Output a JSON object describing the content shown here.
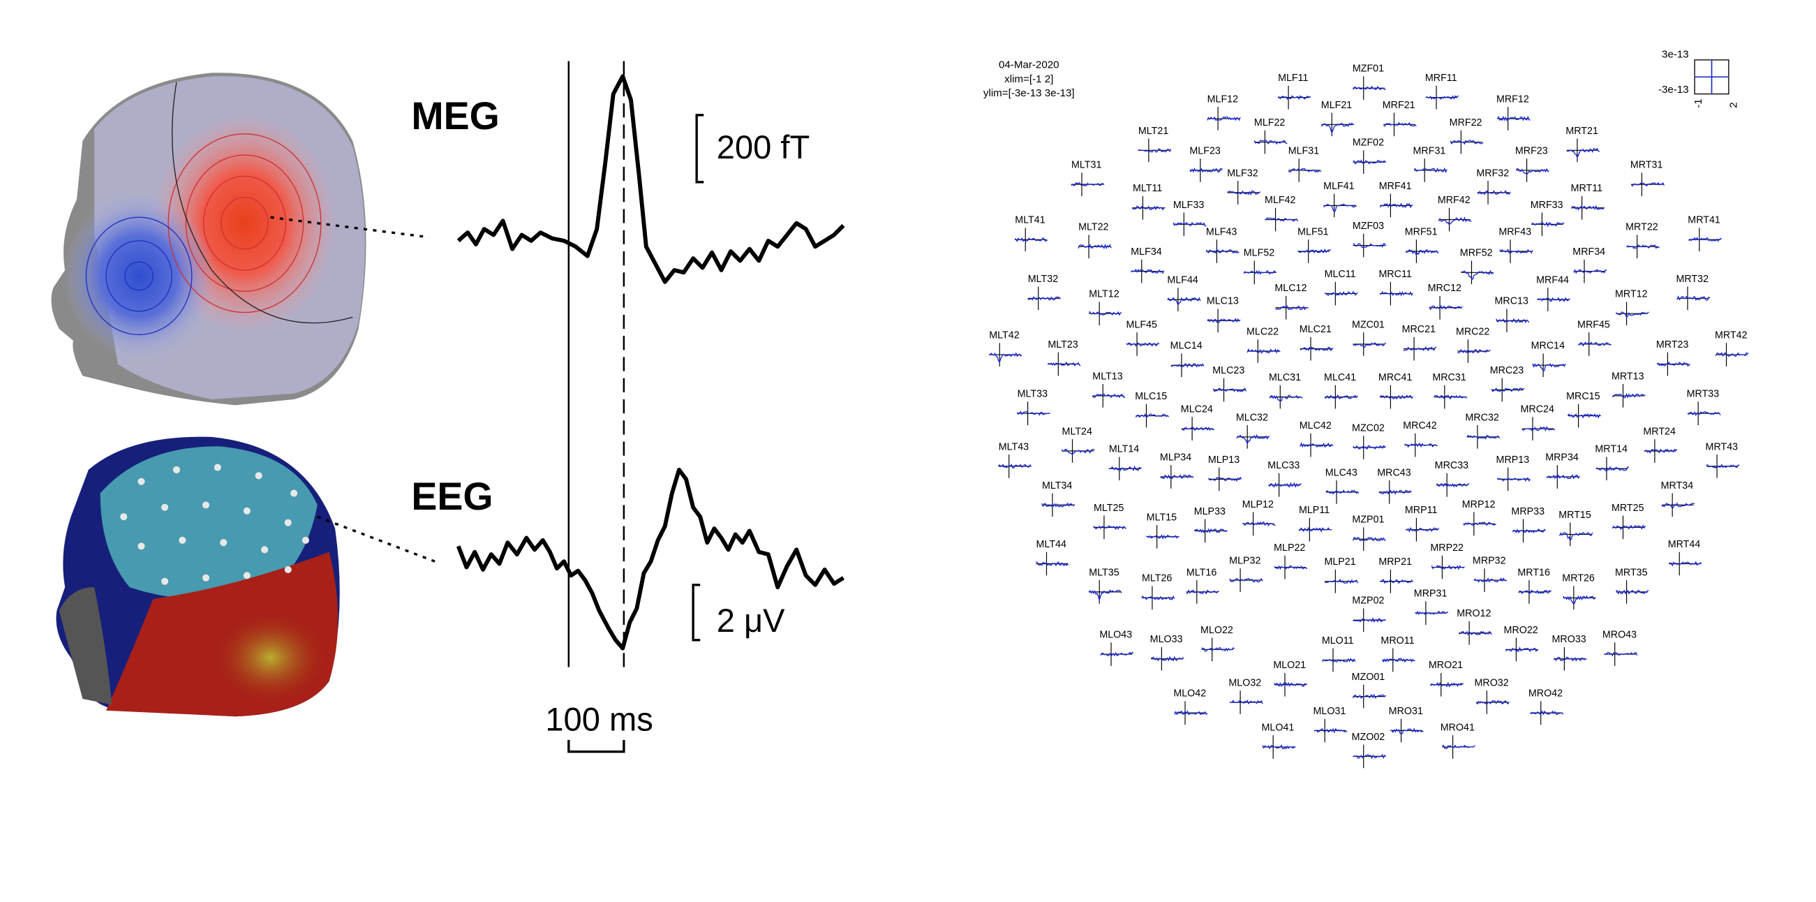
{
  "left_panel": {
    "meg_label": "MEG",
    "eeg_label": "EEG",
    "meg_scale": "200 fT",
    "eeg_scale": "2 μV",
    "time_scale": "100 ms"
  },
  "sensor_layout": {
    "date": "04-Mar-2020",
    "xlim": "xlim=[-1 2]",
    "ylim": "ylim=[-3e-13 3e-13]",
    "scale_top": "3e-13",
    "scale_bottom": "-3e-13",
    "scale_left": "-1",
    "scale_right": "2",
    "sensors": [
      "MZF01",
      "MLF11",
      "MRF11",
      "MLF12",
      "MRF12",
      "MLF21",
      "MRF21",
      "MLF22",
      "MRF22",
      "MLT21",
      "MRT21",
      "MZF02",
      "MLF23",
      "MLF31",
      "MRF31",
      "MRF23",
      "MLT31",
      "MRT31",
      "MLF32",
      "MRF32",
      "MLF41",
      "MRF41",
      "MLT11",
      "MRT11",
      "MLF42",
      "MRF42",
      "MLF33",
      "MRF33",
      "MLT41",
      "MRT41",
      "MZF03",
      "MLT22",
      "MRT22",
      "MLF43",
      "MLF51",
      "MRF51",
      "MRF43",
      "MLF34",
      "MRF34",
      "MLF52",
      "MRF52",
      "MLC11",
      "MRC11",
      "MLT32",
      "MRT32",
      "MLF44",
      "MRF44",
      "MLC12",
      "MRC12",
      "MLT12",
      "MRT12",
      "MLC13",
      "MRC13",
      "MRF45",
      "MLF45",
      "MZC01",
      "MLC21",
      "MRC21",
      "MLC22",
      "MRC22",
      "MLT42",
      "MRT42",
      "MLT23",
      "MRT23",
      "MLC14",
      "MRC14",
      "MLC23",
      "MRC23",
      "MLT13",
      "MRT13",
      "MLC31",
      "MLC41",
      "MRC41",
      "MRC31",
      "MLT33",
      "MRT33",
      "MLC15",
      "MRC15",
      "MLC24",
      "MRC24",
      "MLC32",
      "MRC32",
      "MLC42",
      "MZC02",
      "MRC42",
      "MLT24",
      "MRT24",
      "MLT43",
      "MRT43",
      "MLT14",
      "MRT14",
      "MLP34",
      "MRP34",
      "MLP13",
      "MRP13",
      "MLC33",
      "MRC33",
      "MLC43",
      "MRC43",
      "MLT34",
      "MRT34",
      "MLP12",
      "MRP12",
      "MLT25",
      "MRT25",
      "MLP33",
      "MRP33",
      "MLP11",
      "MRP11",
      "MLT15",
      "MRT15",
      "MZP01",
      "MLT44",
      "MRT44",
      "MLP22",
      "MRP22",
      "MLP32",
      "MRP32",
      "MLP21",
      "MRP21",
      "MLT35",
      "MRT35",
      "MLT16",
      "MRT16",
      "MLT26",
      "MRT26",
      "MRP31",
      "MZP02",
      "MRO12",
      "MLO22",
      "MRO22",
      "MLO43",
      "MRO43",
      "MLO33",
      "MRO33",
      "MLO11",
      "MRO11",
      "MLO21",
      "MRO21",
      "MZO01",
      "MLO32",
      "MRO32",
      "MLO42",
      "MRO42",
      "MLO31",
      "MRO31",
      "MLO41",
      "MRO41",
      "MZO02"
    ]
  }
}
